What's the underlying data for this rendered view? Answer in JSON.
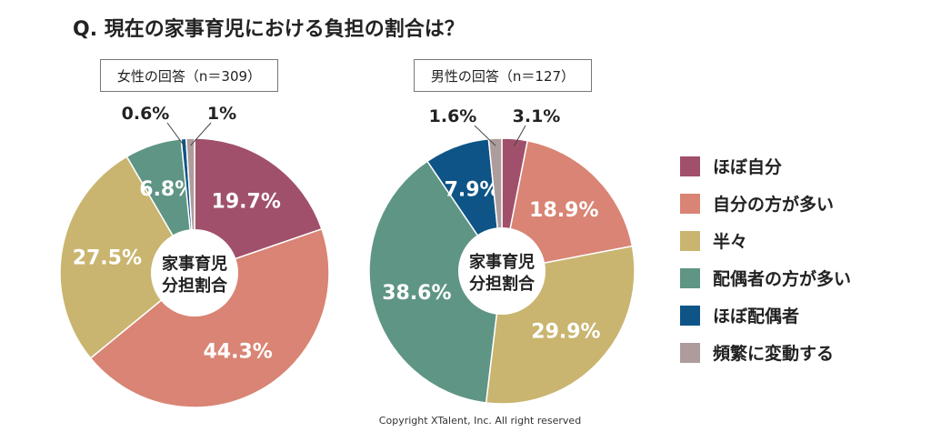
{
  "title": "Q. 現在の家事育児における負担の割合は？",
  "copyright": "Copyright XTalent, Inc. All right reserved",
  "legend": [
    {
      "label": "ほぼ自分",
      "color": "#a0506a"
    },
    {
      "label": "自分の方が多い",
      "color": "#d98474"
    },
    {
      "label": "半々",
      "color": "#c9b570"
    },
    {
      "label": "配偶者の方が多い",
      "color": "#5f9584"
    },
    {
      "label": "ほぼ配偶者",
      "color": "#0e5486"
    },
    {
      "label": "頻繁に変動する",
      "color": "#ae9c9c"
    }
  ],
  "chart_data": [
    {
      "type": "pie",
      "variant": "donut",
      "title": "女性の回答（n＝309）",
      "center_label": [
        "家事育児",
        "分担割合"
      ],
      "categories": [
        "ほぼ自分",
        "自分の方が多い",
        "半々",
        "配偶者の方が多い",
        "ほぼ配偶者",
        "頻繁に変動する"
      ],
      "values": [
        19.7,
        44.3,
        27.5,
        6.8,
        0.6,
        1
      ],
      "labels": [
        "19.7%",
        "44.3%",
        "27.5%",
        "6.8%",
        "0.6%",
        "1%"
      ]
    },
    {
      "type": "pie",
      "variant": "donut",
      "title": "男性の回答（n＝127）",
      "center_label": [
        "家事育児",
        "分担割合"
      ],
      "categories": [
        "ほぼ自分",
        "自分の方が多い",
        "半々",
        "配偶者の方が多い",
        "ほぼ配偶者",
        "頻繁に変動する"
      ],
      "values": [
        3.1,
        18.9,
        29.9,
        38.6,
        7.9,
        1.6
      ],
      "labels": [
        "3.1%",
        "18.9%",
        "29.9%",
        "38.6%",
        "7.9%",
        "1.6%"
      ]
    }
  ]
}
